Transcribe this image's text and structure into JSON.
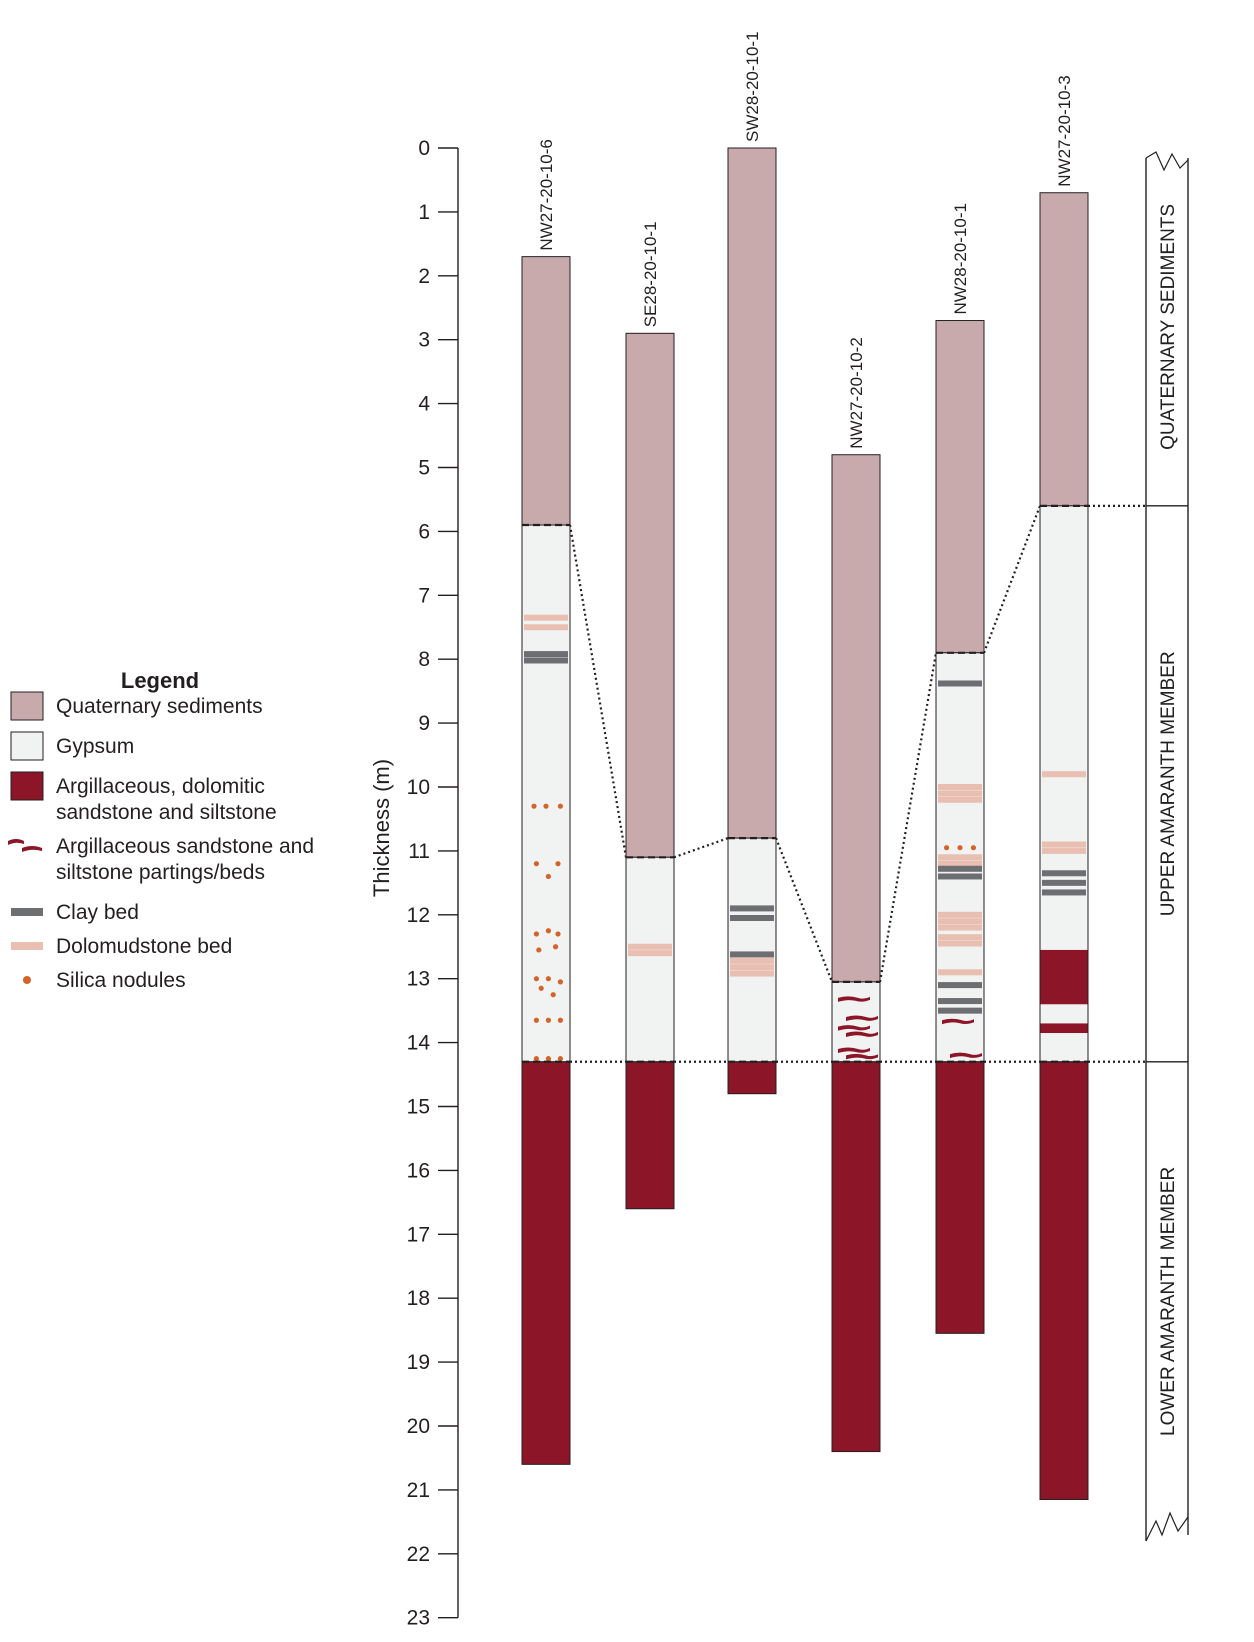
{
  "legend": {
    "title": "Legend",
    "items": [
      {
        "key": "quaternary",
        "lines": [
          "Quaternary sediments"
        ]
      },
      {
        "key": "gypsum",
        "lines": [
          "Gypsum"
        ]
      },
      {
        "key": "argillaceous_dolomitic",
        "lines": [
          "Argillaceous, dolomitic",
          "sandstone and siltstone"
        ]
      },
      {
        "key": "partings",
        "lines": [
          "Argillaceous sandstone and",
          "siltstone partings/beds"
        ]
      },
      {
        "key": "clay",
        "lines": [
          "Clay bed"
        ]
      },
      {
        "key": "dolomudstone",
        "lines": [
          "Dolomudstone bed"
        ]
      },
      {
        "key": "silica",
        "lines": [
          "Silica nodules"
        ]
      }
    ]
  },
  "colors": {
    "quaternary": "#c9aaac",
    "gypsum": "#f1f2f2",
    "argillaceous_dolomitic": "#8c1527",
    "clay": "#6d6e71",
    "dolomudstone": "#e8bfb0",
    "silica": "#d4632a",
    "outline": "#231f20"
  },
  "axis": {
    "title": "Thickness (m)",
    "min": 0,
    "max": 23,
    "ticks": [
      0,
      1,
      2,
      3,
      4,
      5,
      6,
      7,
      8,
      9,
      10,
      11,
      12,
      13,
      14,
      15,
      16,
      17,
      18,
      19,
      20,
      21,
      22,
      23
    ]
  },
  "units": [
    {
      "name": "QUATERNARY SEDIMENTS",
      "top": 0,
      "base": 5.6
    },
    {
      "name": "UPPER AMARANTH MEMBER",
      "top": 5.6,
      "base": 14.3
    },
    {
      "name": "LOWER AMARANTH MEMBER",
      "top": 14.3,
      "base": 21.8
    }
  ],
  "wells": [
    {
      "name": "NW27-20-10-6",
      "intervals": [
        {
          "lith": "quaternary",
          "top": 1.7,
          "base": 5.9
        },
        {
          "lith": "gypsum",
          "top": 5.9,
          "base": 14.3
        },
        {
          "lith": "argillaceous_dolomitic",
          "top": 14.3,
          "base": 20.6
        }
      ],
      "dolomudstone_beds": [
        7.35,
        7.5
      ],
      "clay_beds": [
        7.92,
        8.02
      ],
      "parting_beds": [],
      "silica_nodules": [
        [
          0.25,
          10.3
        ],
        [
          0.5,
          10.3
        ],
        [
          0.8,
          10.3
        ],
        [
          0.3,
          11.2
        ],
        [
          0.75,
          11.2
        ],
        [
          0.55,
          11.4
        ],
        [
          0.3,
          12.3
        ],
        [
          0.55,
          12.25
        ],
        [
          0.75,
          12.3
        ],
        [
          0.35,
          12.55
        ],
        [
          0.7,
          12.5
        ],
        [
          0.3,
          13.0
        ],
        [
          0.55,
          13.0
        ],
        [
          0.8,
          13.05
        ],
        [
          0.4,
          13.15
        ],
        [
          0.65,
          13.25
        ],
        [
          0.3,
          13.65
        ],
        [
          0.55,
          13.65
        ],
        [
          0.8,
          13.65
        ],
        [
          0.3,
          14.25
        ],
        [
          0.55,
          14.25
        ],
        [
          0.8,
          14.25
        ]
      ]
    },
    {
      "name": "SE28-20-10-1",
      "intervals": [
        {
          "lith": "quaternary",
          "top": 2.9,
          "base": 11.1
        },
        {
          "lith": "gypsum",
          "top": 11.1,
          "base": 14.3
        },
        {
          "lith": "argillaceous_dolomitic",
          "top": 14.3,
          "base": 16.6
        }
      ],
      "dolomudstone_beds": [
        12.5,
        12.6
      ],
      "clay_beds": [],
      "parting_beds": [],
      "silica_nodules": []
    },
    {
      "name": "SW28-20-10-1",
      "intervals": [
        {
          "lith": "quaternary",
          "top": 0,
          "base": 10.8
        },
        {
          "lith": "gypsum",
          "top": 10.8,
          "base": 14.3
        },
        {
          "lith": "argillaceous_dolomitic",
          "top": 14.3,
          "base": 14.8
        }
      ],
      "dolomudstone_beds": [
        12.72,
        12.82,
        12.92
      ],
      "clay_beds": [
        11.9,
        12.05,
        12.62
      ],
      "parting_beds": [],
      "silica_nodules": []
    },
    {
      "name": "NW27-20-10-2",
      "intervals": [
        {
          "lith": "quaternary",
          "top": 4.8,
          "base": 13.05
        },
        {
          "lith": "gypsum",
          "top": 13.05,
          "base": 14.3
        },
        {
          "lith": "argillaceous_dolomitic",
          "top": 14.3,
          "base": 20.4
        }
      ],
      "dolomudstone_beds": [],
      "clay_beds": [],
      "parting_beds": [
        13.3,
        13.6,
        13.75,
        13.85,
        14.1,
        14.2
      ],
      "silica_nodules": []
    },
    {
      "name": "NW28-20-10-1",
      "intervals": [
        {
          "lith": "quaternary",
          "top": 2.7,
          "base": 7.9
        },
        {
          "lith": "gypsum",
          "top": 7.9,
          "base": 14.3
        },
        {
          "lith": "argillaceous_dolomitic",
          "top": 14.3,
          "base": 18.55
        }
      ],
      "dolomudstone_beds": [
        10.0,
        10.1,
        10.2,
        11.1,
        11.2,
        12.0,
        12.1,
        12.2,
        12.35,
        12.45,
        12.9
      ],
      "clay_beds": [
        8.38,
        11.28,
        11.4,
        13.1,
        13.35,
        13.5
      ],
      "parting_beds": [
        13.65,
        14.18
      ],
      "silica_nodules": [
        [
          0.22,
          10.95
        ],
        [
          0.5,
          10.95
        ],
        [
          0.78,
          10.95
        ]
      ]
    },
    {
      "name": "NW27-20-10-3",
      "intervals": [
        {
          "lith": "quaternary",
          "top": 0.7,
          "base": 5.6
        },
        {
          "lith": "gypsum",
          "top": 5.6,
          "base": 14.3
        },
        {
          "lith": "argillaceous_dolomitic",
          "top": 14.3,
          "base": 21.15
        }
      ],
      "dolomudstone_beds": [
        9.8,
        10.9,
        11.0
      ],
      "clay_beds": [
        11.35,
        11.5,
        11.65
      ],
      "parting_beds": [],
      "silica_nodules": [],
      "extra_argillaceous_beds": [
        [
          12.55,
          13.4
        ],
        [
          13.7,
          13.85
        ]
      ]
    }
  ]
}
